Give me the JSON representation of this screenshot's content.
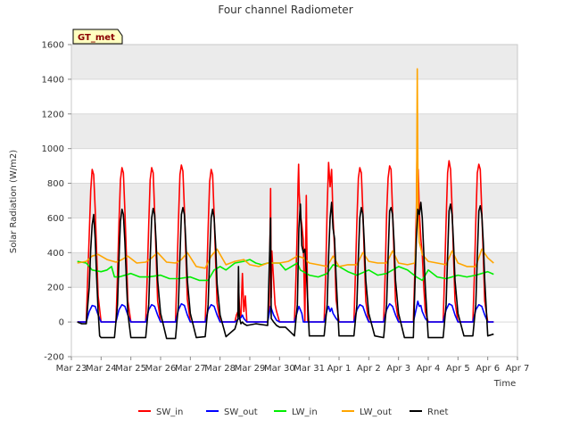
{
  "chart_data": {
    "type": "line",
    "title": "Four channel Radiometer",
    "xlabel": "Time",
    "ylabel": "Solar Radiation (W/m2)",
    "site_label": "GT_met",
    "xlim": [
      0,
      15
    ],
    "ylim": [
      -200,
      1600
    ],
    "x_tick_values": [
      0,
      1,
      2,
      3,
      4,
      5,
      6,
      7,
      8,
      9,
      10,
      11,
      12,
      13,
      14,
      15
    ],
    "x_tick_labels": [
      "Mar 23",
      "Mar 24",
      "Mar 25",
      "Mar 26",
      "Mar 27",
      "Mar 28",
      "Mar 29",
      "Mar 30",
      "Mar 31",
      "Apr 1",
      "Apr 2",
      "Apr 3",
      "Apr 4",
      "Apr 5",
      "Apr 6",
      "Apr 7"
    ],
    "y_ticks": [
      -200,
      0,
      200,
      400,
      600,
      800,
      1000,
      1200,
      1400,
      1600
    ],
    "bands": [
      [
        200,
        400
      ],
      [
        600,
        800
      ],
      [
        1000,
        1200
      ],
      [
        1400,
        1600
      ]
    ],
    "colors": {
      "band": "#ebebeb",
      "grid": "#d9d9d9",
      "axis": "#c8c8c8"
    },
    "series": [
      {
        "name": "SW_in",
        "color": "#ff0000",
        "x": [
          0.2,
          0.5,
          0.55,
          0.6,
          0.65,
          0.7,
          0.75,
          0.8,
          0.85,
          0.9,
          1.0,
          1.2,
          1.5,
          1.55,
          1.6,
          1.65,
          1.7,
          1.75,
          1.8,
          1.85,
          1.9,
          2.0,
          2.2,
          2.5,
          2.55,
          2.6,
          2.65,
          2.7,
          2.75,
          2.8,
          2.85,
          2.9,
          3.0,
          3.2,
          3.5,
          3.55,
          3.6,
          3.65,
          3.7,
          3.75,
          3.8,
          3.85,
          3.9,
          4.0,
          4.2,
          4.5,
          4.55,
          4.6,
          4.65,
          4.7,
          4.75,
          4.8,
          4.85,
          4.9,
          5.0,
          5.2,
          5.5,
          5.55,
          5.6,
          5.62,
          5.64,
          5.66,
          5.7,
          5.75,
          5.8,
          5.85,
          5.9,
          6.2,
          6.6,
          6.65,
          6.7,
          6.72,
          6.74,
          6.8,
          6.85,
          6.9,
          6.95,
          7.0,
          7.2,
          7.5,
          7.55,
          7.6,
          7.62,
          7.64,
          7.66,
          7.7,
          7.75,
          7.8,
          7.85,
          7.9,
          7.95,
          8.0,
          8.2,
          8.5,
          8.55,
          8.6,
          8.65,
          8.7,
          8.75,
          8.8,
          8.85,
          8.9,
          9.0,
          9.2,
          9.5,
          9.55,
          9.6,
          9.65,
          9.7,
          9.75,
          9.8,
          9.85,
          9.9,
          10.0,
          10.2,
          10.5,
          10.55,
          10.6,
          10.65,
          10.7,
          10.75,
          10.8,
          10.85,
          10.9,
          11.0,
          11.2,
          11.5,
          11.55,
          11.6,
          11.62,
          11.64,
          11.66,
          11.7,
          11.75,
          11.8,
          11.85,
          11.9,
          12.0,
          12.2,
          12.5,
          12.55,
          12.6,
          12.65,
          12.7,
          12.75,
          12.8,
          12.85,
          12.9,
          13.0,
          13.2,
          13.5,
          13.55,
          13.6,
          13.65,
          13.7,
          13.75,
          13.8,
          13.85,
          13.9,
          14.0,
          14.2
        ],
        "y": [
          0,
          0,
          250,
          500,
          760,
          880,
          850,
          650,
          400,
          150,
          0,
          0,
          0,
          270,
          560,
          820,
          890,
          860,
          640,
          380,
          120,
          0,
          0,
          0,
          260,
          560,
          820,
          890,
          860,
          640,
          380,
          120,
          0,
          0,
          0,
          270,
          580,
          850,
          905,
          870,
          650,
          390,
          130,
          0,
          0,
          0,
          250,
          540,
          810,
          880,
          850,
          620,
          350,
          110,
          0,
          0,
          0,
          40,
          60,
          230,
          130,
          50,
          30,
          280,
          60,
          150,
          0,
          0,
          0,
          80,
          770,
          140,
          410,
          240,
          100,
          60,
          30,
          0,
          0,
          0,
          250,
          560,
          780,
          910,
          750,
          620,
          560,
          470,
          0,
          730,
          0,
          0,
          0,
          0,
          270,
          660,
          920,
          780,
          880,
          600,
          420,
          130,
          0,
          0,
          0,
          270,
          580,
          830,
          890,
          860,
          640,
          380,
          120,
          0,
          0,
          0,
          270,
          620,
          830,
          900,
          880,
          640,
          380,
          120,
          0,
          0,
          0,
          300,
          650,
          940,
          760,
          880,
          630,
          480,
          390,
          200,
          60,
          0,
          0,
          0,
          270,
          580,
          860,
          930,
          880,
          660,
          380,
          120,
          0,
          0,
          0,
          270,
          580,
          860,
          910,
          880,
          640,
          380,
          120,
          0,
          0
        ]
      },
      {
        "name": "SW_out",
        "color": "#0000ff",
        "x": [
          0.2,
          0.5,
          0.6,
          0.7,
          0.8,
          0.9,
          1.0,
          1.5,
          1.6,
          1.7,
          1.8,
          1.9,
          2.0,
          2.5,
          2.6,
          2.7,
          2.8,
          2.9,
          3.0,
          3.5,
          3.6,
          3.7,
          3.8,
          3.9,
          4.0,
          4.5,
          4.6,
          4.7,
          4.8,
          4.9,
          5.0,
          5.5,
          5.6,
          5.7,
          5.75,
          5.8,
          5.9,
          6.2,
          6.6,
          6.7,
          6.8,
          6.9,
          7.0,
          7.5,
          7.6,
          7.65,
          7.7,
          7.75,
          7.8,
          7.9,
          8.0,
          8.5,
          8.6,
          8.65,
          8.7,
          8.75,
          8.8,
          8.9,
          9.0,
          9.5,
          9.6,
          9.7,
          9.8,
          9.9,
          10.0,
          10.5,
          10.6,
          10.7,
          10.8,
          10.9,
          11.0,
          11.5,
          11.6,
          11.65,
          11.7,
          11.75,
          11.8,
          11.9,
          12.0,
          12.5,
          12.6,
          12.7,
          12.8,
          12.9,
          13.0,
          13.5,
          13.6,
          13.7,
          13.8,
          13.9,
          14.0,
          14.2
        ],
        "y": [
          0,
          0,
          60,
          95,
          90,
          40,
          0,
          0,
          70,
          100,
          90,
          40,
          0,
          0,
          70,
          100,
          90,
          40,
          0,
          0,
          70,
          105,
          95,
          40,
          0,
          0,
          70,
          100,
          90,
          40,
          0,
          0,
          15,
          25,
          40,
          20,
          0,
          0,
          0,
          90,
          40,
          10,
          0,
          0,
          60,
          90,
          70,
          50,
          0,
          0,
          0,
          0,
          70,
          90,
          60,
          80,
          50,
          20,
          0,
          0,
          70,
          100,
          90,
          40,
          0,
          0,
          70,
          105,
          90,
          40,
          0,
          0,
          80,
          120,
          90,
          95,
          60,
          20,
          0,
          0,
          70,
          105,
          95,
          40,
          0,
          0,
          70,
          100,
          90,
          40,
          0,
          0
        ]
      },
      {
        "name": "LW_in",
        "color": "#00ee00",
        "x": [
          0.2,
          0.5,
          0.7,
          1.0,
          1.2,
          1.35,
          1.45,
          1.6,
          2.0,
          2.3,
          2.6,
          3.0,
          3.3,
          3.6,
          4.0,
          4.3,
          4.6,
          4.8,
          5.0,
          5.2,
          5.5,
          5.8,
          6.0,
          6.2,
          6.4,
          6.6,
          7.0,
          7.2,
          7.4,
          7.6,
          7.7,
          8.0,
          8.3,
          8.6,
          8.8,
          9.0,
          9.3,
          9.6,
          10.0,
          10.3,
          10.6,
          11.0,
          11.3,
          11.6,
          11.8,
          12.0,
          12.3,
          12.6,
          13.0,
          13.3,
          13.6,
          14.0,
          14.2
        ],
        "y": [
          350,
          340,
          300,
          290,
          300,
          320,
          260,
          260,
          280,
          260,
          260,
          270,
          250,
          250,
          260,
          240,
          240,
          300,
          320,
          300,
          340,
          350,
          360,
          340,
          330,
          340,
          340,
          300,
          320,
          340,
          300,
          270,
          260,
          280,
          330,
          320,
          290,
          270,
          300,
          270,
          280,
          320,
          300,
          260,
          240,
          300,
          260,
          250,
          270,
          260,
          270,
          290,
          275
        ]
      },
      {
        "name": "LW_out",
        "color": "#ffa500",
        "x": [
          0.2,
          0.5,
          0.7,
          0.9,
          1.2,
          1.5,
          1.7,
          1.9,
          2.2,
          2.5,
          2.7,
          2.9,
          3.2,
          3.5,
          3.7,
          3.9,
          4.2,
          4.5,
          4.7,
          4.9,
          5.2,
          5.5,
          5.8,
          6.0,
          6.3,
          6.6,
          7.0,
          7.3,
          7.6,
          7.8,
          8.0,
          8.3,
          8.6,
          8.8,
          9.0,
          9.3,
          9.6,
          9.8,
          10.0,
          10.3,
          10.6,
          10.8,
          11.0,
          11.3,
          11.55,
          11.6,
          11.63,
          11.66,
          11.7,
          11.8,
          12.0,
          12.3,
          12.6,
          12.8,
          13.0,
          13.3,
          13.6,
          13.8,
          14.0,
          14.2
        ],
        "y": [
          340,
          350,
          380,
          390,
          360,
          345,
          360,
          380,
          340,
          345,
          370,
          400,
          345,
          340,
          360,
          400,
          320,
          310,
          380,
          420,
          330,
          350,
          360,
          330,
          320,
          340,
          340,
          350,
          380,
          370,
          340,
          330,
          320,
          380,
          320,
          330,
          330,
          400,
          350,
          340,
          340,
          410,
          340,
          330,
          340,
          520,
          1460,
          600,
          460,
          390,
          350,
          340,
          330,
          410,
          340,
          320,
          320,
          420,
          370,
          340
        ]
      },
      {
        "name": "Rnet",
        "color": "#000000",
        "x": [
          0.2,
          0.35,
          0.5,
          0.6,
          0.65,
          0.7,
          0.75,
          0.8,
          0.85,
          0.9,
          0.95,
          1.0,
          1.2,
          1.45,
          1.55,
          1.6,
          1.65,
          1.7,
          1.75,
          1.8,
          1.85,
          1.9,
          2.0,
          2.2,
          2.5,
          2.6,
          2.65,
          2.7,
          2.75,
          2.8,
          2.85,
          2.9,
          3.0,
          3.2,
          3.5,
          3.6,
          3.65,
          3.7,
          3.75,
          3.8,
          3.85,
          3.9,
          4.0,
          4.2,
          4.5,
          4.6,
          4.65,
          4.7,
          4.75,
          4.8,
          4.85,
          4.9,
          5.0,
          5.2,
          5.5,
          5.55,
          5.6,
          5.62,
          5.64,
          5.66,
          5.7,
          5.75,
          5.8,
          5.9,
          6.2,
          6.6,
          6.7,
          6.72,
          6.8,
          6.9,
          7.0,
          7.2,
          7.5,
          7.6,
          7.65,
          7.7,
          7.75,
          7.8,
          7.85,
          7.9,
          8.0,
          8.2,
          8.5,
          8.6,
          8.65,
          8.7,
          8.75,
          8.8,
          8.85,
          8.9,
          9.0,
          9.2,
          9.5,
          9.6,
          9.65,
          9.7,
          9.75,
          9.8,
          9.85,
          9.9,
          10.0,
          10.2,
          10.5,
          10.6,
          10.65,
          10.7,
          10.75,
          10.8,
          10.85,
          10.9,
          11.0,
          11.2,
          11.5,
          11.55,
          11.6,
          11.65,
          11.7,
          11.75,
          11.8,
          11.85,
          11.9,
          12.0,
          12.2,
          12.5,
          12.6,
          12.65,
          12.7,
          12.75,
          12.8,
          12.85,
          12.9,
          13.0,
          13.2,
          13.5,
          13.6,
          13.65,
          13.7,
          13.75,
          13.8,
          13.85,
          13.9,
          14.0,
          14.2
        ],
        "y": [
          0,
          -10,
          -10,
          200,
          420,
          560,
          620,
          480,
          260,
          60,
          -80,
          -90,
          -90,
          -90,
          100,
          360,
          580,
          650,
          620,
          460,
          240,
          50,
          -90,
          -90,
          -90,
          100,
          360,
          600,
          655,
          620,
          460,
          240,
          50,
          -95,
          -95,
          100,
          380,
          620,
          660,
          620,
          460,
          240,
          50,
          -90,
          -85,
          100,
          380,
          600,
          650,
          600,
          440,
          220,
          40,
          -85,
          -40,
          -10,
          20,
          320,
          50,
          20,
          -10,
          0,
          -10,
          -20,
          -10,
          -20,
          600,
          20,
          0,
          -20,
          -30,
          -30,
          -80,
          100,
          540,
          680,
          440,
          400,
          420,
          300,
          -80,
          -80,
          -80,
          100,
          380,
          600,
          690,
          540,
          480,
          260,
          -80,
          -80,
          -80,
          100,
          380,
          600,
          660,
          620,
          460,
          240,
          50,
          -80,
          -90,
          100,
          380,
          640,
          660,
          620,
          460,
          240,
          50,
          -90,
          -90,
          200,
          480,
          650,
          620,
          690,
          600,
          400,
          200,
          -90,
          -90,
          -90,
          100,
          380,
          640,
          680,
          620,
          460,
          240,
          50,
          -80,
          -80,
          100,
          380,
          640,
          670,
          620,
          460,
          240,
          -80,
          -70
        ]
      }
    ],
    "legend": {
      "placement": "bottom",
      "entries": [
        "SW_in",
        "SW_out",
        "LW_in",
        "LW_out",
        "Rnet"
      ]
    }
  }
}
